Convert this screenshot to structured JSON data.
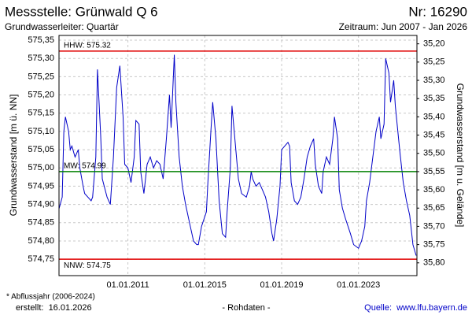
{
  "chart_data": {
    "type": "line",
    "title": "Messstelle: Grünwald Q 6",
    "number": "Nr: 16290",
    "subtitle": "Grundwasserleiter: Quartär",
    "period": "Zeitraum: Jun 2007 - Jan 2026",
    "y_label": "Grundwasserstand [m ü. NN]",
    "y2_label": "Grundwasserstand [m u. Gelände]",
    "footnote": "* Abflussjahr (2006-2024)",
    "created": "erstellt:  16.01.2026",
    "data_note": "- Rohdaten -",
    "source": "Quelle:  www.lfu.bayern.de",
    "color": "#0000c8",
    "grid": true,
    "xlim": [
      "2007-06-01",
      "2026-01-16"
    ],
    "xticks": [
      {
        "value": "2011-01-01",
        "label": "01.01.2011"
      },
      {
        "value": "2015-01-01",
        "label": "01.01.2015"
      },
      {
        "value": "2019-01-01",
        "label": "01.01.2019"
      },
      {
        "value": "2023-01-01",
        "label": "01.01.2023"
      }
    ],
    "ylim": [
      574.705,
      575.363
    ],
    "yticks": [
      {
        "value": 574.75,
        "label": "574,75"
      },
      {
        "value": 574.8,
        "label": "574,80"
      },
      {
        "value": 574.85,
        "label": "574,85"
      },
      {
        "value": 574.9,
        "label": "574,90"
      },
      {
        "value": 574.95,
        "label": "574,95"
      },
      {
        "value": 575.0,
        "label": "575,00"
      },
      {
        "value": 575.05,
        "label": "575,05"
      },
      {
        "value": 575.1,
        "label": "575,10"
      },
      {
        "value": 575.15,
        "label": "575,15"
      },
      {
        "value": 575.2,
        "label": "575,20"
      },
      {
        "value": 575.25,
        "label": "575,25"
      },
      {
        "value": 575.3,
        "label": "575,30"
      },
      {
        "value": 575.35,
        "label": "575,35"
      }
    ],
    "y2lim": [
      35.835,
      35.177
    ],
    "y2ticks": [
      {
        "value": 35.2,
        "label": "35,20"
      },
      {
        "value": 35.25,
        "label": "35,25"
      },
      {
        "value": 35.3,
        "label": "35,30"
      },
      {
        "value": 35.35,
        "label": "35,35"
      },
      {
        "value": 35.4,
        "label": "35,40"
      },
      {
        "value": 35.45,
        "label": "35,45"
      },
      {
        "value": 35.5,
        "label": "35,50"
      },
      {
        "value": 35.55,
        "label": "35,55"
      },
      {
        "value": 35.6,
        "label": "35,60"
      },
      {
        "value": 35.65,
        "label": "35,65"
      },
      {
        "value": 35.7,
        "label": "35,70"
      },
      {
        "value": 35.75,
        "label": "35,75"
      },
      {
        "value": 35.8,
        "label": "35,80"
      }
    ],
    "reference_lines": [
      {
        "label": "HHW: 575.32",
        "value": 575.32,
        "color": "#e00000"
      },
      {
        "label": "MW: 574.99",
        "value": 574.99,
        "color": "#008000"
      },
      {
        "label": "NNW: 574.75",
        "value": 574.75,
        "color": "#e00000"
      }
    ],
    "x": [
      "2007-06-01",
      "2007-08-01",
      "2007-09-01",
      "2007-10-01",
      "2007-12-01",
      "2008-01-01",
      "2008-02-01",
      "2008-04-01",
      "2008-06-01",
      "2008-07-01",
      "2008-09-01",
      "2008-10-01",
      "2008-12-01",
      "2009-02-01",
      "2009-03-01",
      "2009-05-01",
      "2009-06-01",
      "2009-08-01",
      "2009-09-01",
      "2009-12-01",
      "2010-02-01",
      "2010-04-01",
      "2010-06-01",
      "2010-08-01",
      "2010-10-01",
      "2010-11-01",
      "2011-01-01",
      "2011-03-01",
      "2011-05-01",
      "2011-06-01",
      "2011-08-01",
      "2011-09-01",
      "2011-11-01",
      "2012-01-01",
      "2012-03-01",
      "2012-05-01",
      "2012-07-01",
      "2012-09-01",
      "2012-11-01",
      "2013-01-01",
      "2013-03-01",
      "2013-04-01",
      "2013-06-01",
      "2013-07-01",
      "2013-09-01",
      "2013-11-01",
      "2014-01-01",
      "2014-04-01",
      "2014-06-01",
      "2014-08-01",
      "2014-09-01",
      "2014-11-01",
      "2015-02-01",
      "2015-03-01",
      "2015-05-01",
      "2015-06-01",
      "2015-08-01",
      "2015-10-01",
      "2015-12-01",
      "2016-02-01",
      "2016-03-01",
      "2016-05-01",
      "2016-06-01",
      "2016-08-01",
      "2016-10-01",
      "2016-12-01",
      "2017-03-01",
      "2017-05-01",
      "2017-06-01",
      "2017-07-01",
      "2017-09-01",
      "2017-11-01",
      "2018-01-01",
      "2018-03-01",
      "2018-05-01",
      "2018-07-01",
      "2018-08-01",
      "2018-10-01",
      "2018-12-01",
      "2019-01-01",
      "2019-03-01",
      "2019-05-01",
      "2019-06-01",
      "2019-07-01",
      "2019-09-01",
      "2019-11-01",
      "2020-01-01",
      "2020-03-01",
      "2020-05-01",
      "2020-07-01",
      "2020-09-01",
      "2020-10-01",
      "2020-12-01",
      "2021-02-01",
      "2021-03-01",
      "2021-05-01",
      "2021-07-01",
      "2021-09-01",
      "2021-10-01",
      "2021-12-01",
      "2022-01-01",
      "2022-03-01",
      "2022-05-01",
      "2022-08-01",
      "2022-10-01",
      "2023-01-01",
      "2023-03-01",
      "2023-05-01",
      "2023-06-01",
      "2023-08-01",
      "2023-10-01",
      "2023-12-01",
      "2024-02-01",
      "2024-03-01",
      "2024-05-01",
      "2024-06-01",
      "2024-08-01",
      "2024-09-01",
      "2024-11-01",
      "2024-12-01",
      "2025-02-01",
      "2025-03-01",
      "2025-05-01",
      "2025-07-01",
      "2025-09-01",
      "2025-11-01",
      "2026-01-01"
    ],
    "values": [
      574.888,
      574.92,
      575.1,
      575.14,
      575.1,
      575.05,
      575.06,
      575.03,
      575.05,
      575.0,
      574.95,
      574.93,
      574.92,
      574.91,
      574.92,
      575.03,
      575.27,
      575.09,
      574.97,
      574.92,
      574.9,
      575.03,
      575.22,
      575.28,
      575.14,
      575.01,
      575.0,
      574.96,
      575.03,
      575.13,
      575.12,
      574.99,
      574.93,
      575.01,
      575.03,
      575.0,
      575.02,
      575.01,
      574.97,
      575.08,
      575.2,
      575.11,
      575.31,
      575.18,
      575.03,
      574.95,
      574.9,
      574.84,
      574.8,
      574.79,
      574.79,
      574.84,
      574.88,
      574.96,
      575.11,
      575.18,
      575.08,
      574.91,
      574.82,
      574.81,
      574.88,
      575.0,
      575.17,
      575.07,
      574.97,
      574.93,
      574.92,
      574.95,
      574.99,
      574.97,
      574.95,
      574.96,
      574.94,
      574.92,
      574.88,
      574.82,
      574.8,
      574.86,
      574.95,
      575.05,
      575.06,
      575.07,
      575.06,
      574.96,
      574.91,
      574.9,
      574.92,
      574.97,
      575.03,
      575.06,
      575.08,
      575.01,
      574.95,
      574.93,
      574.99,
      575.03,
      575.01,
      575.08,
      575.14,
      575.08,
      574.94,
      574.89,
      574.86,
      574.82,
      574.79,
      574.78,
      574.8,
      574.84,
      574.91,
      574.96,
      575.03,
      575.1,
      575.14,
      575.08,
      575.12,
      575.3,
      575.26,
      575.18,
      575.24,
      575.17,
      575.08,
      575.04,
      574.96,
      574.91,
      574.87,
      574.79,
      574.76
    ]
  }
}
